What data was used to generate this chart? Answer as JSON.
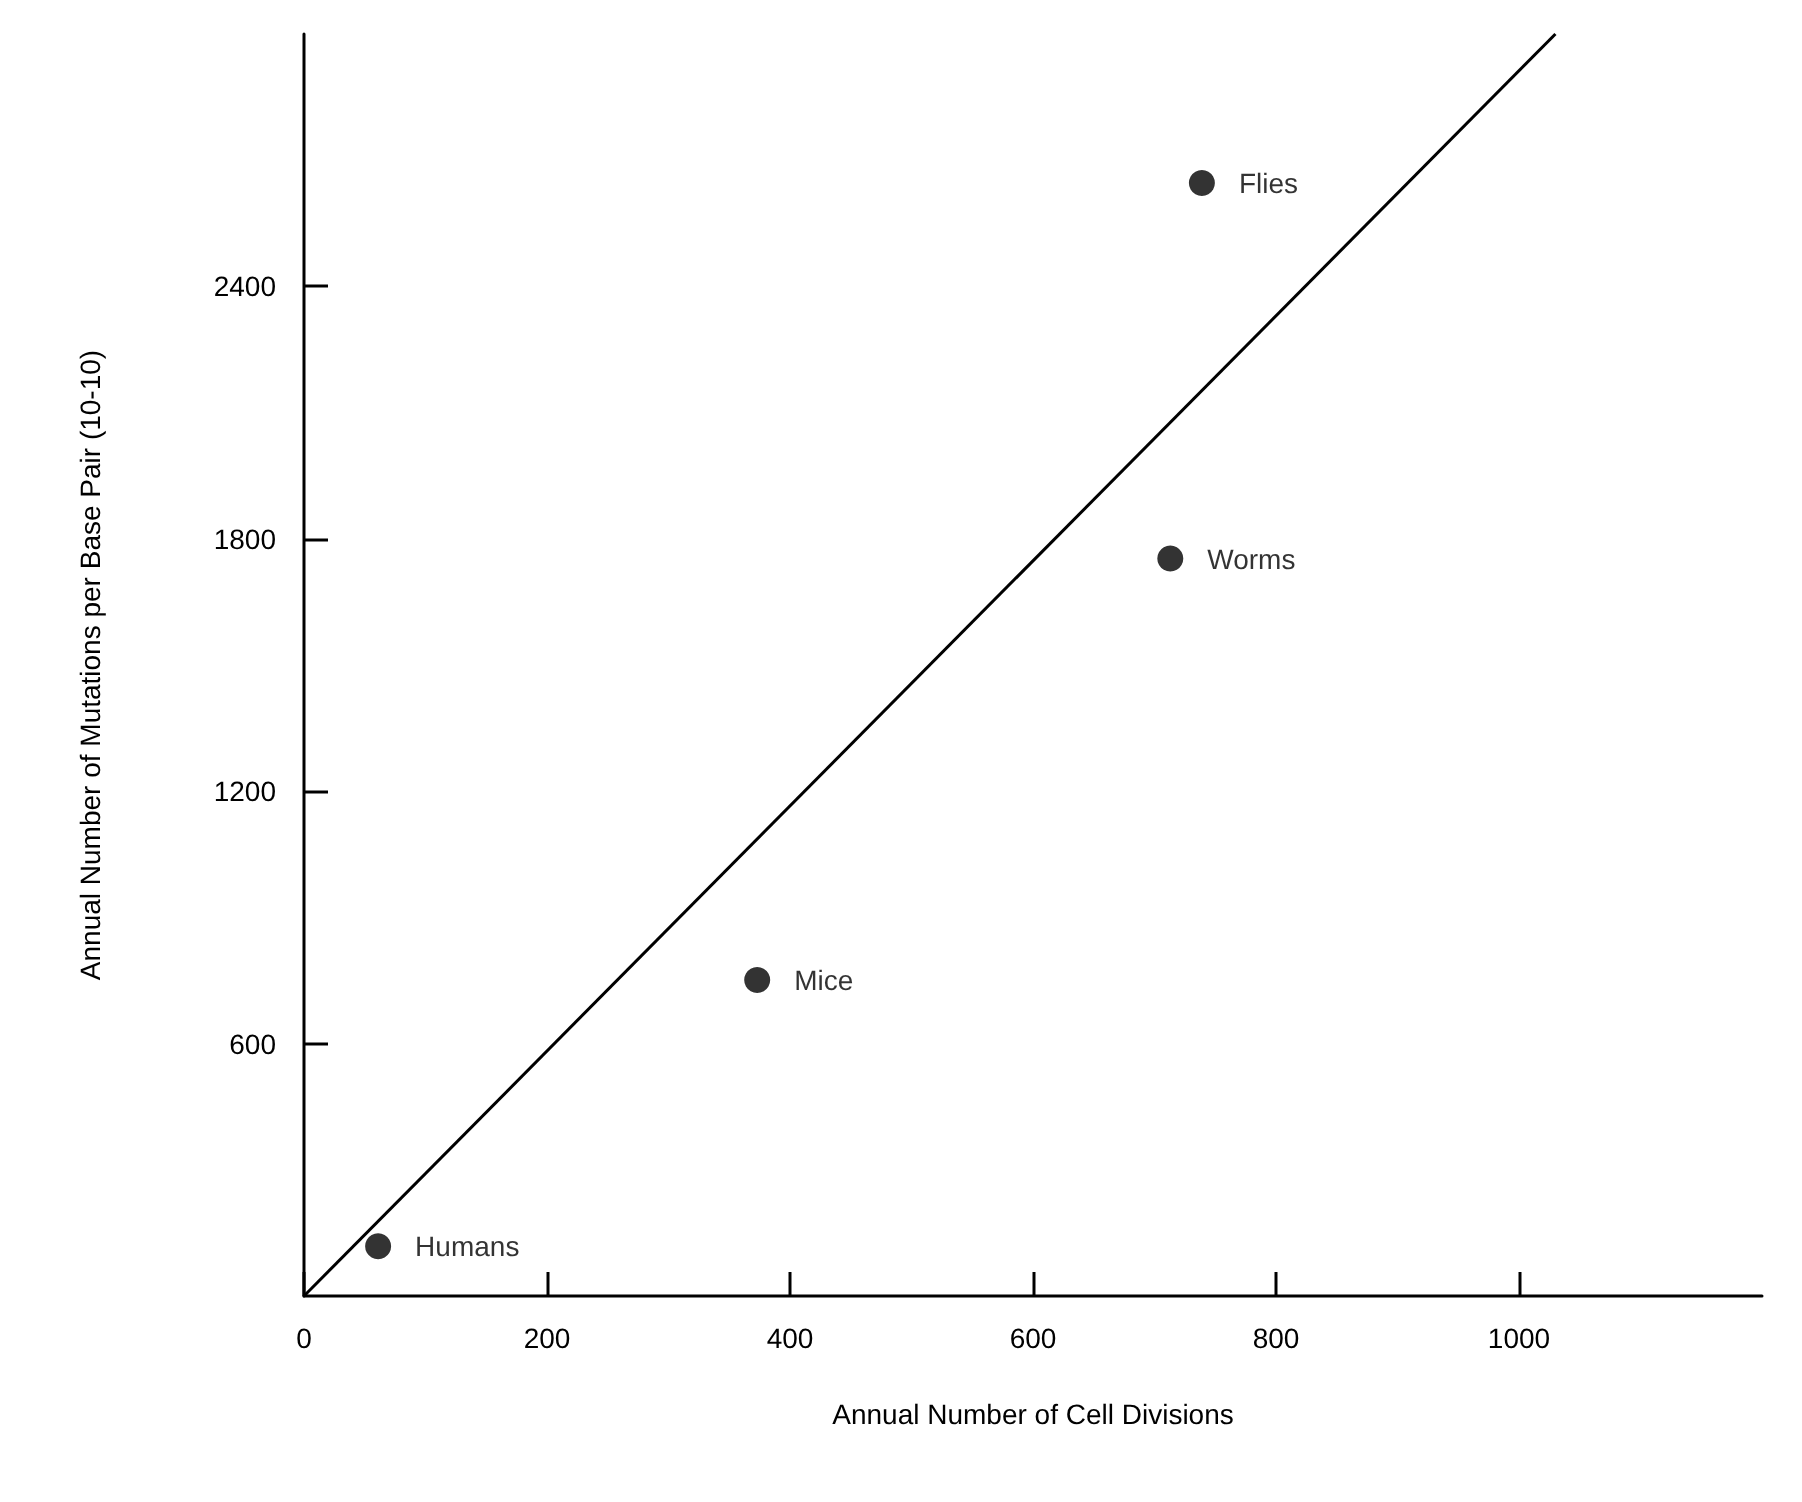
{
  "chart_data": {
    "type": "scatter",
    "xlabel": "Annual Number of Cell Divisions",
    "ylabel": "Annual Number of Mutations per Base Pair (10-10)",
    "xlim": [
      0,
      1200
    ],
    "ylim": [
      0,
      3000
    ],
    "xticks": [
      0,
      200,
      400,
      600,
      800,
      1000
    ],
    "yticks": [
      600,
      1200,
      1800,
      2400
    ],
    "grid": false,
    "series": [
      {
        "color": "#000000",
        "marker": "circle",
        "x": [
          61,
          373,
          713,
          739
        ],
        "values": [
          118,
          751,
          1753,
          2646
        ],
        "value_labels": [
          "Humans",
          "Mice",
          "Worms",
          "Flies"
        ]
      },
      {
        "type": "line",
        "color": "#000000",
        "marker": "none",
        "line_style": "solid",
        "x": [
          0,
          1030
        ],
        "values": [
          0,
          3000
        ]
      }
    ]
  }
}
